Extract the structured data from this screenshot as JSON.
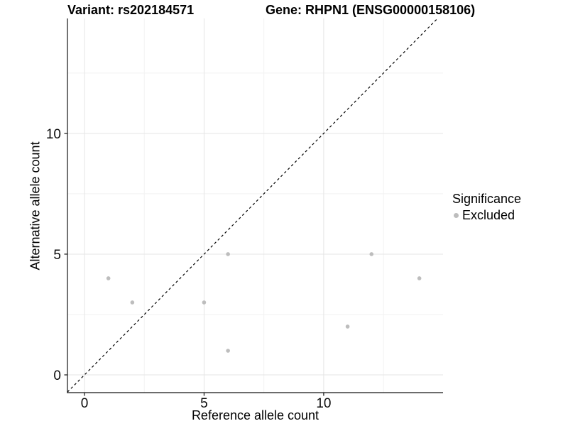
{
  "titles": {
    "variant": "Variant: rs202184571",
    "gene": "Gene: RHPN1 (ENSG00000158106)"
  },
  "chart_data": {
    "type": "scatter",
    "title_left": "Variant: rs202184571",
    "title_right": "Gene: RHPN1 (ENSG00000158106)",
    "xlabel": "Reference allele count",
    "ylabel": "Alternative allele count",
    "xlim": [
      -0.712,
      14.99
    ],
    "ylim": [
      -0.735,
      14.76
    ],
    "x_ticks": [
      0,
      5,
      10
    ],
    "x_tick_labels": [
      "0",
      "5",
      "10"
    ],
    "y_ticks": [
      0,
      5,
      10
    ],
    "y_tick_labels": [
      "0",
      "5",
      "10"
    ],
    "x_minor_breaks": [
      2.5,
      7.5,
      12.5
    ],
    "y_minor_breaks": [
      2.5,
      7.5,
      12.5
    ],
    "grid": true,
    "points": [
      {
        "x": 1,
        "y": 4,
        "group": "Excluded"
      },
      {
        "x": 2,
        "y": 3,
        "group": "Excluded"
      },
      {
        "x": 5,
        "y": 3,
        "group": "Excluded"
      },
      {
        "x": 6,
        "y": 5,
        "group": "Excluded"
      },
      {
        "x": 6,
        "y": 1,
        "group": "Excluded"
      },
      {
        "x": 11,
        "y": 2,
        "group": "Excluded"
      },
      {
        "x": 12,
        "y": 5,
        "group": "Excluded"
      },
      {
        "x": 14,
        "y": 4,
        "group": "Excluded"
      }
    ],
    "identity_line": {
      "slope": 1,
      "intercept": 0,
      "style": "dashed",
      "color": "#000000"
    },
    "colors": {
      "point": "#bdbdbd",
      "grid_major": "#e5e5e5",
      "grid_minor": "#f2f2f2",
      "axis_line": "#141414",
      "tick_label": "#0a0a0a"
    },
    "legend": {
      "title": "Significance",
      "position": "right",
      "items": [
        {
          "label": "Excluded",
          "color": "#bdbdbd"
        }
      ]
    }
  }
}
